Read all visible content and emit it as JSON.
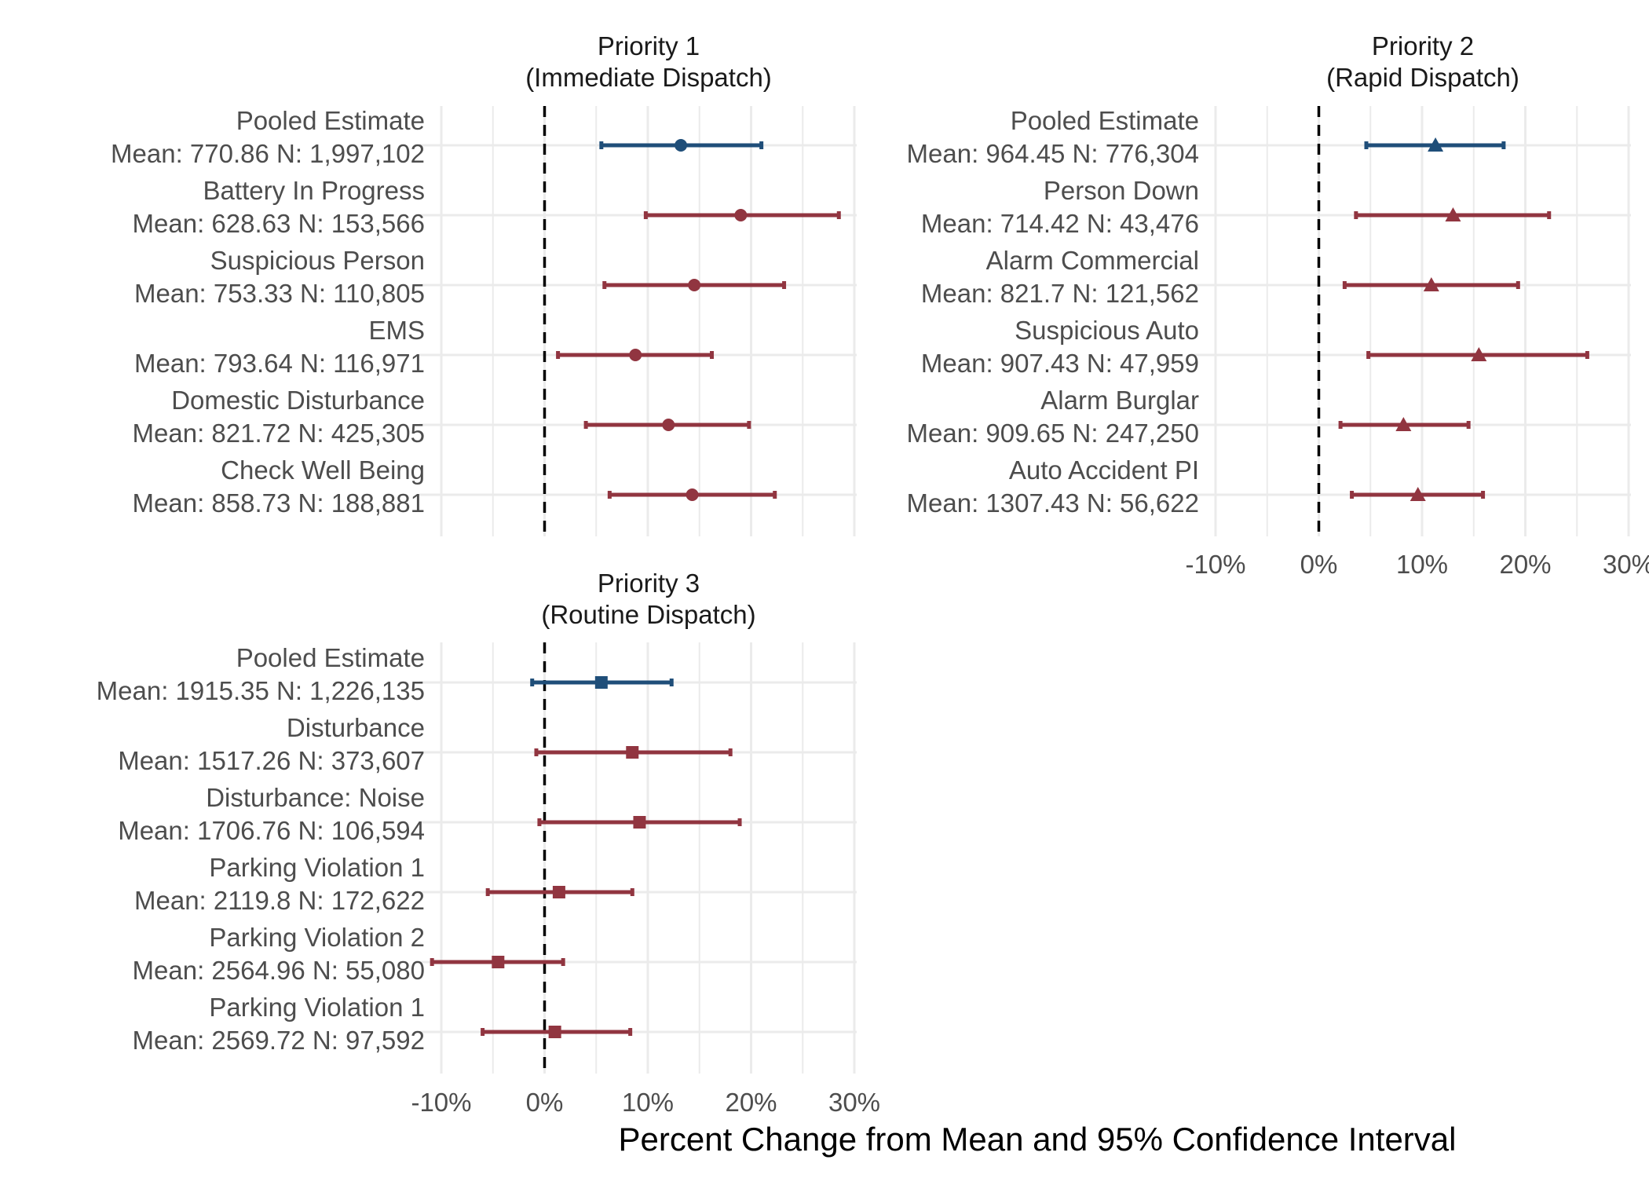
{
  "figure": {
    "xlabel": "Percent Change from Mean and 95% Confidence Interval",
    "colors": {
      "pooled": "#1f4e79",
      "call_type": "#913540",
      "grid": "#ebebeb",
      "zero_line": "#000000",
      "label_text": "#4d4d4d",
      "title_text": "#1a1a1a"
    }
  },
  "chart_data": [
    {
      "type": "forest",
      "panel": "priority-1",
      "title": [
        "Priority 1",
        "(Immediate Dispatch)"
      ],
      "marker": "circle",
      "xlim": [
        -10,
        30
      ],
      "x_ticks": [
        -10,
        0,
        10,
        20,
        30
      ],
      "x_tick_labels": [
        "-10%",
        "0%",
        "10%",
        "20%",
        "30%"
      ],
      "show_x_ticks": false,
      "rows": [
        {
          "name": "Pooled Estimate",
          "stats": "Mean: 770.86 N: 1,997,102",
          "estimate": 13.2,
          "low": 5.5,
          "high": 21.0,
          "pooled": true
        },
        {
          "name": "Battery In Progress",
          "stats": "Mean: 628.63 N: 153,566",
          "estimate": 19.0,
          "low": 9.8,
          "high": 28.5,
          "pooled": false
        },
        {
          "name": "Suspicious Person",
          "stats": "Mean: 753.33 N: 110,805",
          "estimate": 14.5,
          "low": 5.8,
          "high": 23.2,
          "pooled": false
        },
        {
          "name": "EMS",
          "stats": "Mean: 793.64 N: 116,971",
          "estimate": 8.8,
          "low": 1.3,
          "high": 16.2,
          "pooled": false
        },
        {
          "name": "Domestic Disturbance",
          "stats": "Mean: 821.72 N: 425,305",
          "estimate": 12.0,
          "low": 4.0,
          "high": 19.8,
          "pooled": false
        },
        {
          "name": "Check Well Being",
          "stats": "Mean: 858.73 N: 188,881",
          "estimate": 14.3,
          "low": 6.3,
          "high": 22.3,
          "pooled": false
        }
      ]
    },
    {
      "type": "forest",
      "panel": "priority-2",
      "title": [
        "Priority 2",
        "(Rapid Dispatch)"
      ],
      "marker": "triangle",
      "xlim": [
        -10,
        30
      ],
      "x_ticks": [
        -10,
        0,
        10,
        20,
        30
      ],
      "x_tick_labels": [
        "-10%",
        "0%",
        "10%",
        "20%",
        "30%"
      ],
      "show_x_ticks": true,
      "rows": [
        {
          "name": "Pooled Estimate",
          "stats": "Mean: 964.45 N: 776,304",
          "estimate": 11.3,
          "low": 4.6,
          "high": 17.9,
          "pooled": true
        },
        {
          "name": "Person Down",
          "stats": "Mean: 714.42 N: 43,476",
          "estimate": 13.0,
          "low": 3.6,
          "high": 22.3,
          "pooled": false
        },
        {
          "name": "Alarm Commercial",
          "stats": "Mean: 821.7 N: 121,562",
          "estimate": 10.9,
          "low": 2.5,
          "high": 19.3,
          "pooled": false
        },
        {
          "name": "Suspicious Auto",
          "stats": "Mean: 907.43 N: 47,959",
          "estimate": 15.5,
          "low": 4.8,
          "high": 26.0,
          "pooled": false
        },
        {
          "name": "Alarm Burglar",
          "stats": "Mean: 909.65 N: 247,250",
          "estimate": 8.2,
          "low": 2.1,
          "high": 14.5,
          "pooled": false
        },
        {
          "name": "Auto Accident PI",
          "stats": "Mean: 1307.43 N: 56,622",
          "estimate": 9.6,
          "low": 3.2,
          "high": 15.9,
          "pooled": false
        }
      ]
    },
    {
      "type": "forest",
      "panel": "priority-3",
      "title": [
        "Priority 3",
        "(Routine Dispatch)"
      ],
      "marker": "square",
      "xlim": [
        -10,
        30
      ],
      "x_ticks": [
        -10,
        0,
        10,
        20,
        30
      ],
      "x_tick_labels": [
        "-10%",
        "0%",
        "10%",
        "20%",
        "30%"
      ],
      "show_x_ticks": true,
      "rows": [
        {
          "name": "Pooled Estimate",
          "stats": "Mean: 1915.35 N: 1,226,135",
          "estimate": 5.5,
          "low": -1.2,
          "high": 12.3,
          "pooled": true
        },
        {
          "name": "Disturbance",
          "stats": "Mean: 1517.26 N: 373,607",
          "estimate": 8.5,
          "low": -0.8,
          "high": 18.0,
          "pooled": false
        },
        {
          "name": "Disturbance: Noise",
          "stats": "Mean: 1706.76 N: 106,594",
          "estimate": 9.2,
          "low": -0.5,
          "high": 18.9,
          "pooled": false
        },
        {
          "name": "Parking Violation 1",
          "stats": "Mean: 2119.8 N: 172,622",
          "estimate": 1.4,
          "low": -5.5,
          "high": 8.5,
          "pooled": false
        },
        {
          "name": "Parking Violation 2",
          "stats": "Mean: 2564.96 N: 55,080",
          "estimate": -4.5,
          "low": -10.9,
          "high": 1.8,
          "pooled": false
        },
        {
          "name": "Parking Violation 1",
          "stats": "Mean: 2569.72 N: 97,592",
          "estimate": 1.0,
          "low": -6.0,
          "high": 8.3,
          "pooled": false
        }
      ]
    }
  ]
}
